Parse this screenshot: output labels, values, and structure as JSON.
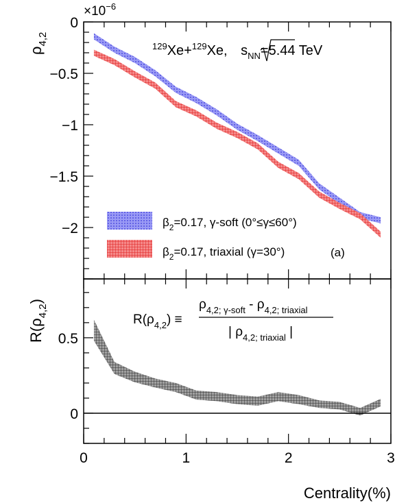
{
  "chart_data": [
    {
      "type": "area",
      "panel": "top",
      "ylabel": "ρ",
      "ylabel_sub": "4,2",
      "y_multiplier": "×10",
      "y_multiplier_exp": "−6",
      "xlim": [
        0,
        3
      ],
      "ylim": [
        -2.5,
        0
      ],
      "yticks": [
        {
          "v": 0,
          "label": "0"
        },
        {
          "v": -0.5,
          "label": "−0.5"
        },
        {
          "v": -1,
          "label": "−1"
        },
        {
          "v": -1.5,
          "label": "−1.5"
        },
        {
          "v": -2,
          "label": "−2"
        }
      ],
      "annotation": {
        "a1": "129",
        "t1": "Xe+",
        "a2": "129",
        "t2": "Xe, ",
        "s": "s",
        "nn": "NN",
        "rest": "=5.44 TeV"
      },
      "panel_label": "(a)",
      "legend_position": "bottom-left",
      "x": [
        0.1,
        0.3,
        0.5,
        0.7,
        0.9,
        1.1,
        1.3,
        1.5,
        1.7,
        1.9,
        2.1,
        2.3,
        2.5,
        2.7,
        2.9
      ],
      "series": [
        {
          "name": "β2=0.17, γ-soft (0°≤γ≤60°)",
          "legend": {
            "b": "β",
            "sub": "2",
            "rest": "=0.17, γ-soft (0°≤γ≤60°)"
          },
          "color": "#6a6af0",
          "values": [
            -0.14,
            -0.27,
            -0.37,
            -0.5,
            -0.66,
            -0.76,
            -0.88,
            -1.02,
            -1.13,
            -1.25,
            -1.37,
            -1.6,
            -1.74,
            -1.88,
            -1.93
          ],
          "halfwidth": 0.03
        },
        {
          "name": "β2=0.17, triaxial (γ=30°)",
          "legend": {
            "b": "β",
            "sub": "2",
            "rest": "=0.17, triaxial (γ=30°)"
          },
          "color": "#f03c3c",
          "values": [
            -0.3,
            -0.39,
            -0.51,
            -0.62,
            -0.8,
            -0.89,
            -1.01,
            -1.1,
            -1.21,
            -1.39,
            -1.5,
            -1.68,
            -1.79,
            -1.89,
            -2.07
          ],
          "halfwidth": 0.03
        }
      ]
    },
    {
      "type": "area",
      "panel": "bottom",
      "ylabel": "R(ρ",
      "ylabel_sub": "4,2",
      "ylabel_end": ")",
      "xlabel": "Centrality(%)",
      "xlim": [
        0,
        3
      ],
      "ylim": [
        -0.2,
        0.89
      ],
      "xticks": [
        {
          "v": 0,
          "label": "0"
        },
        {
          "v": 1,
          "label": "1"
        },
        {
          "v": 2,
          "label": "2"
        },
        {
          "v": 3,
          "label": "3"
        }
      ],
      "yticks": [
        {
          "v": 0,
          "label": "0"
        },
        {
          "v": 0.5,
          "label": "0.5"
        }
      ],
      "formula": {
        "lhs": "R(ρ",
        "lhs_sub": "4,2",
        "lhs_end": ") ≡",
        "num_a": "ρ",
        "num_a_sub": "4,2; γ-soft",
        "minus": " - ",
        "num_b": "ρ",
        "num_b_sub": "4,2; triaxial",
        "den_open": "| ρ",
        "den_sub": "4,2; triaxial",
        "den_close": " |"
      },
      "x": [
        0.1,
        0.3,
        0.5,
        0.7,
        0.9,
        1.1,
        1.3,
        1.5,
        1.7,
        1.9,
        2.1,
        2.3,
        2.5,
        2.7,
        2.9
      ],
      "series": [
        {
          "color": "#555555",
          "values": [
            0.55,
            0.3,
            0.24,
            0.2,
            0.17,
            0.12,
            0.11,
            0.09,
            0.08,
            0.11,
            0.09,
            0.06,
            0.05,
            0.01,
            0.07
          ],
          "halfwidth": [
            0.07,
            0.04,
            0.035,
            0.03,
            0.03,
            0.03,
            0.03,
            0.03,
            0.03,
            0.03,
            0.03,
            0.025,
            0.025,
            0.025,
            0.025
          ]
        }
      ]
    }
  ]
}
